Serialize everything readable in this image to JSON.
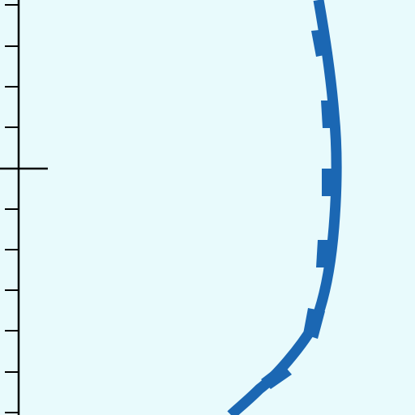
{
  "colors": {
    "background": "#e8fafc",
    "axis": "#000000",
    "curve": "#1b67b3"
  }
}
